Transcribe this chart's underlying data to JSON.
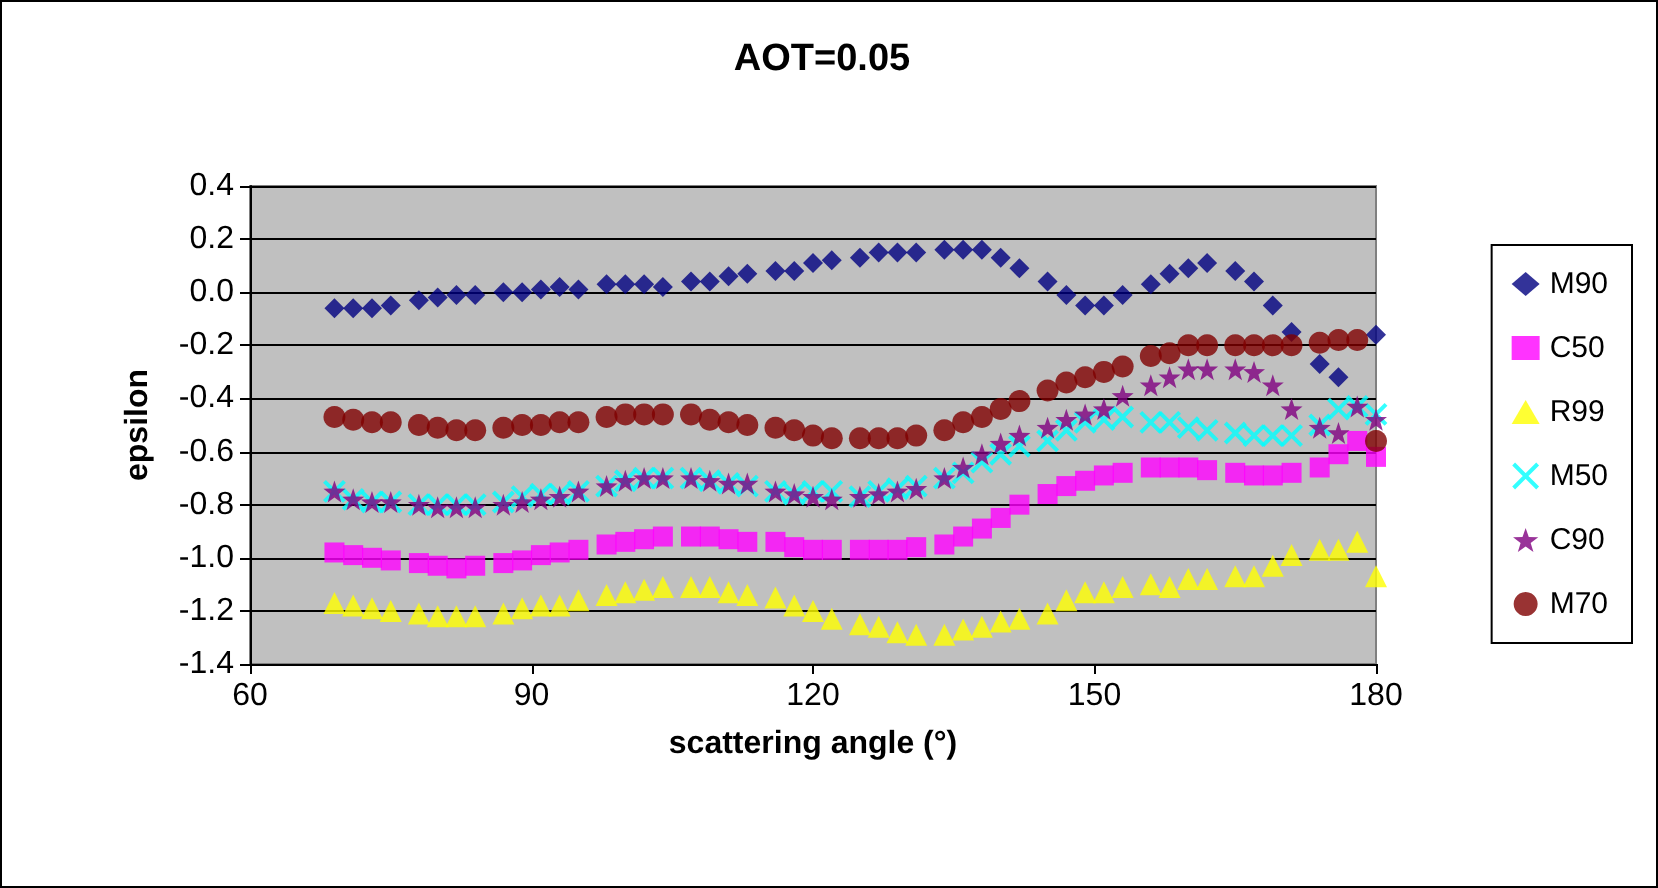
{
  "chart_data": {
    "type": "scatter",
    "title": "AOT=0.05",
    "xlabel": "scattering angle (°)",
    "ylabel": "epsilon",
    "x": [
      69,
      71,
      73,
      75,
      78,
      80,
      82,
      84,
      87,
      89,
      91,
      93,
      95,
      98,
      100,
      102,
      104,
      107,
      109,
      111,
      113,
      116,
      118,
      120,
      122,
      125,
      127,
      129,
      131,
      134,
      136,
      138,
      140,
      142,
      145,
      147,
      149,
      151,
      153,
      156,
      158,
      160,
      162,
      165,
      167,
      169,
      171,
      174,
      176,
      178,
      180
    ],
    "series": [
      {
        "name": "M90",
        "color": "#000080",
        "marker": "diamond",
        "values": [
          -0.06,
          -0.06,
          -0.06,
          -0.05,
          -0.03,
          -0.02,
          -0.01,
          -0.01,
          0.0,
          0.0,
          0.01,
          0.02,
          0.01,
          0.03,
          0.03,
          0.03,
          0.02,
          0.04,
          0.04,
          0.06,
          0.07,
          0.08,
          0.08,
          0.11,
          0.12,
          0.13,
          0.15,
          0.15,
          0.15,
          0.16,
          0.16,
          0.16,
          0.13,
          0.09,
          0.04,
          -0.01,
          -0.05,
          -0.05,
          -0.01,
          0.03,
          0.07,
          0.09,
          0.11,
          0.08,
          0.04,
          -0.05,
          -0.15,
          -0.27,
          -0.32,
          null,
          -0.16
        ]
      },
      {
        "name": "C50",
        "color": "#ff00ff",
        "marker": "square",
        "values": [
          -0.98,
          -0.99,
          -1.0,
          -1.01,
          -1.02,
          -1.03,
          -1.04,
          -1.03,
          -1.02,
          -1.01,
          -0.99,
          -0.98,
          -0.97,
          -0.95,
          -0.94,
          -0.93,
          -0.92,
          -0.92,
          -0.92,
          -0.93,
          -0.94,
          -0.94,
          -0.96,
          -0.97,
          -0.97,
          -0.97,
          -0.97,
          -0.97,
          -0.96,
          -0.95,
          -0.92,
          -0.89,
          -0.85,
          -0.8,
          -0.76,
          -0.73,
          -0.71,
          -0.69,
          -0.68,
          -0.66,
          -0.66,
          -0.66,
          -0.67,
          -0.68,
          -0.69,
          -0.69,
          -0.68,
          -0.66,
          -0.61,
          -0.56,
          -0.62
        ]
      },
      {
        "name": "R99",
        "color": "#ffff00",
        "marker": "triangle",
        "values": [
          -1.17,
          -1.18,
          -1.19,
          -1.2,
          -1.21,
          -1.22,
          -1.22,
          -1.22,
          -1.21,
          -1.19,
          -1.18,
          -1.18,
          -1.16,
          -1.14,
          -1.13,
          -1.12,
          -1.11,
          -1.11,
          -1.11,
          -1.13,
          -1.14,
          -1.15,
          -1.18,
          -1.2,
          -1.23,
          -1.25,
          -1.26,
          -1.28,
          -1.29,
          -1.29,
          -1.27,
          -1.26,
          -1.24,
          -1.23,
          -1.21,
          -1.16,
          -1.13,
          -1.13,
          -1.11,
          -1.1,
          -1.11,
          -1.08,
          -1.08,
          -1.07,
          -1.07,
          -1.03,
          -0.99,
          -0.97,
          -0.97,
          -0.94,
          -1.07
        ]
      },
      {
        "name": "M50",
        "color": "#00ffff",
        "marker": "cross",
        "values": [
          -0.75,
          -0.78,
          -0.79,
          -0.79,
          -0.8,
          -0.8,
          -0.8,
          -0.8,
          -0.79,
          -0.77,
          -0.76,
          -0.76,
          -0.75,
          -0.73,
          -0.71,
          -0.7,
          -0.7,
          -0.7,
          -0.71,
          -0.72,
          -0.73,
          -0.75,
          -0.76,
          -0.75,
          -0.75,
          -0.77,
          -0.75,
          -0.74,
          -0.73,
          -0.7,
          -0.68,
          -0.64,
          -0.61,
          -0.58,
          -0.56,
          -0.52,
          -0.49,
          -0.48,
          -0.47,
          -0.49,
          -0.49,
          -0.51,
          -0.52,
          -0.53,
          -0.54,
          -0.54,
          -0.54,
          -0.5,
          -0.44,
          -0.43,
          -0.46
        ]
      },
      {
        "name": "C90",
        "color": "#800080",
        "marker": "star",
        "values": [
          -0.75,
          -0.78,
          -0.79,
          -0.79,
          -0.8,
          -0.81,
          -0.81,
          -0.81,
          -0.8,
          -0.79,
          -0.78,
          -0.77,
          -0.75,
          -0.73,
          -0.71,
          -0.7,
          -0.7,
          -0.7,
          -0.71,
          -0.72,
          -0.72,
          -0.75,
          -0.76,
          -0.77,
          -0.78,
          -0.77,
          -0.76,
          -0.75,
          -0.74,
          -0.7,
          -0.66,
          -0.61,
          -0.57,
          -0.54,
          -0.51,
          -0.48,
          -0.46,
          -0.44,
          -0.39,
          -0.35,
          -0.32,
          -0.29,
          -0.29,
          -0.29,
          -0.3,
          -0.35,
          -0.44,
          -0.51,
          -0.53,
          -0.43,
          -0.48
        ]
      },
      {
        "name": "M70",
        "color": "#800000",
        "marker": "circle",
        "values": [
          -0.47,
          -0.48,
          -0.49,
          -0.49,
          -0.5,
          -0.51,
          -0.52,
          -0.52,
          -0.51,
          -0.5,
          -0.5,
          -0.49,
          -0.49,
          -0.47,
          -0.46,
          -0.46,
          -0.46,
          -0.46,
          -0.48,
          -0.49,
          -0.5,
          -0.51,
          -0.52,
          -0.54,
          -0.55,
          -0.55,
          -0.55,
          -0.55,
          -0.54,
          -0.52,
          -0.49,
          -0.47,
          -0.44,
          -0.41,
          -0.37,
          -0.34,
          -0.32,
          -0.3,
          -0.28,
          -0.24,
          -0.23,
          -0.2,
          -0.2,
          -0.2,
          -0.2,
          -0.2,
          -0.2,
          -0.19,
          -0.18,
          -0.18,
          -0.56
        ]
      }
    ],
    "xlim": [
      60,
      180
    ],
    "xticks": [
      60,
      90,
      120,
      150,
      180
    ],
    "ylim": [
      -1.4,
      0.4
    ],
    "yticks": [
      {
        "value": -1.4,
        "label": "-1.4"
      },
      {
        "value": -1.2,
        "label": "-1.2"
      },
      {
        "value": -1.0,
        "label": "-1.0"
      },
      {
        "value": -0.8,
        "label": "-0.8"
      },
      {
        "value": -0.6,
        "label": "-0.6"
      },
      {
        "value": -0.4,
        "label": "-0.4"
      },
      {
        "value": -0.2,
        "label": "-0.2"
      },
      {
        "value": 0,
        "label": "0.0"
      },
      {
        "value": 0.2,
        "label": "0.2"
      },
      {
        "value": 0.4,
        "label": "0.4"
      }
    ],
    "grid": "y",
    "legend": "right"
  }
}
